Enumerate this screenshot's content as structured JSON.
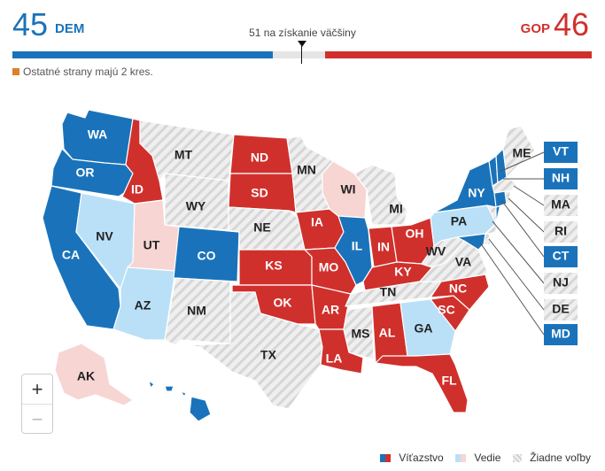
{
  "header": {
    "dem_count": "45",
    "dem_label": "DEM",
    "gop_count": "46",
    "gop_label": "GOP",
    "majority_label": "51 na získanie väčšiny",
    "others_note": "Ostatné strany majú 2 kres."
  },
  "colors": {
    "dem_win": "#1a73ba",
    "dem_lead": "#b9e0f7",
    "gop_win": "#d0302c",
    "gop_lead": "#f7d5d3",
    "no_election": "#e5e5e5",
    "other": "#d8822a"
  },
  "seat_bar": {
    "total": 100,
    "dem": 45,
    "gop": 46,
    "others": 2,
    "majority": 51
  },
  "states": [
    {
      "abbr": "WA",
      "status": "dem_win"
    },
    {
      "abbr": "OR",
      "status": "dem_win"
    },
    {
      "abbr": "CA",
      "status": "dem_win"
    },
    {
      "abbr": "NV",
      "status": "dem_lead"
    },
    {
      "abbr": "ID",
      "status": "gop_win"
    },
    {
      "abbr": "MT",
      "status": "none"
    },
    {
      "abbr": "WY",
      "status": "none"
    },
    {
      "abbr": "UT",
      "status": "gop_lead"
    },
    {
      "abbr": "AZ",
      "status": "dem_lead"
    },
    {
      "abbr": "CO",
      "status": "dem_win"
    },
    {
      "abbr": "NM",
      "status": "none"
    },
    {
      "abbr": "ND",
      "status": "gop_win"
    },
    {
      "abbr": "SD",
      "status": "gop_win"
    },
    {
      "abbr": "NE",
      "status": "none"
    },
    {
      "abbr": "KS",
      "status": "gop_win"
    },
    {
      "abbr": "OK",
      "status": "gop_win"
    },
    {
      "abbr": "TX",
      "status": "none"
    },
    {
      "abbr": "MN",
      "status": "none"
    },
    {
      "abbr": "IA",
      "status": "gop_win"
    },
    {
      "abbr": "MO",
      "status": "gop_win"
    },
    {
      "abbr": "AR",
      "status": "gop_win"
    },
    {
      "abbr": "LA",
      "status": "gop_win"
    },
    {
      "abbr": "WI",
      "status": "gop_lead"
    },
    {
      "abbr": "IL",
      "status": "dem_win"
    },
    {
      "abbr": "MI",
      "status": "none"
    },
    {
      "abbr": "IN",
      "status": "gop_win"
    },
    {
      "abbr": "OH",
      "status": "gop_win"
    },
    {
      "abbr": "KY",
      "status": "gop_win"
    },
    {
      "abbr": "TN",
      "status": "none"
    },
    {
      "abbr": "MS",
      "status": "none"
    },
    {
      "abbr": "AL",
      "status": "gop_win"
    },
    {
      "abbr": "GA",
      "status": "dem_lead"
    },
    {
      "abbr": "FL",
      "status": "gop_win"
    },
    {
      "abbr": "SC",
      "status": "gop_win"
    },
    {
      "abbr": "NC",
      "status": "gop_win"
    },
    {
      "abbr": "VA",
      "status": "none"
    },
    {
      "abbr": "WV",
      "status": "none"
    },
    {
      "abbr": "PA",
      "status": "dem_lead"
    },
    {
      "abbr": "NY",
      "status": "dem_win"
    },
    {
      "abbr": "VT",
      "status": "dem_win"
    },
    {
      "abbr": "NH",
      "status": "dem_win"
    },
    {
      "abbr": "ME",
      "status": "none"
    },
    {
      "abbr": "MA",
      "status": "none"
    },
    {
      "abbr": "RI",
      "status": "none"
    },
    {
      "abbr": "CT",
      "status": "dem_win"
    },
    {
      "abbr": "NJ",
      "status": "none"
    },
    {
      "abbr": "DE",
      "status": "none"
    },
    {
      "abbr": "MD",
      "status": "dem_win"
    },
    {
      "abbr": "AK",
      "status": "gop_lead"
    },
    {
      "abbr": "HI",
      "status": "dem_win"
    }
  ],
  "zoom": {
    "in": "+",
    "out": "−"
  },
  "legend": {
    "win": "Víťazstvo",
    "lead": "Vedie",
    "none": "Žiadne voľby"
  }
}
